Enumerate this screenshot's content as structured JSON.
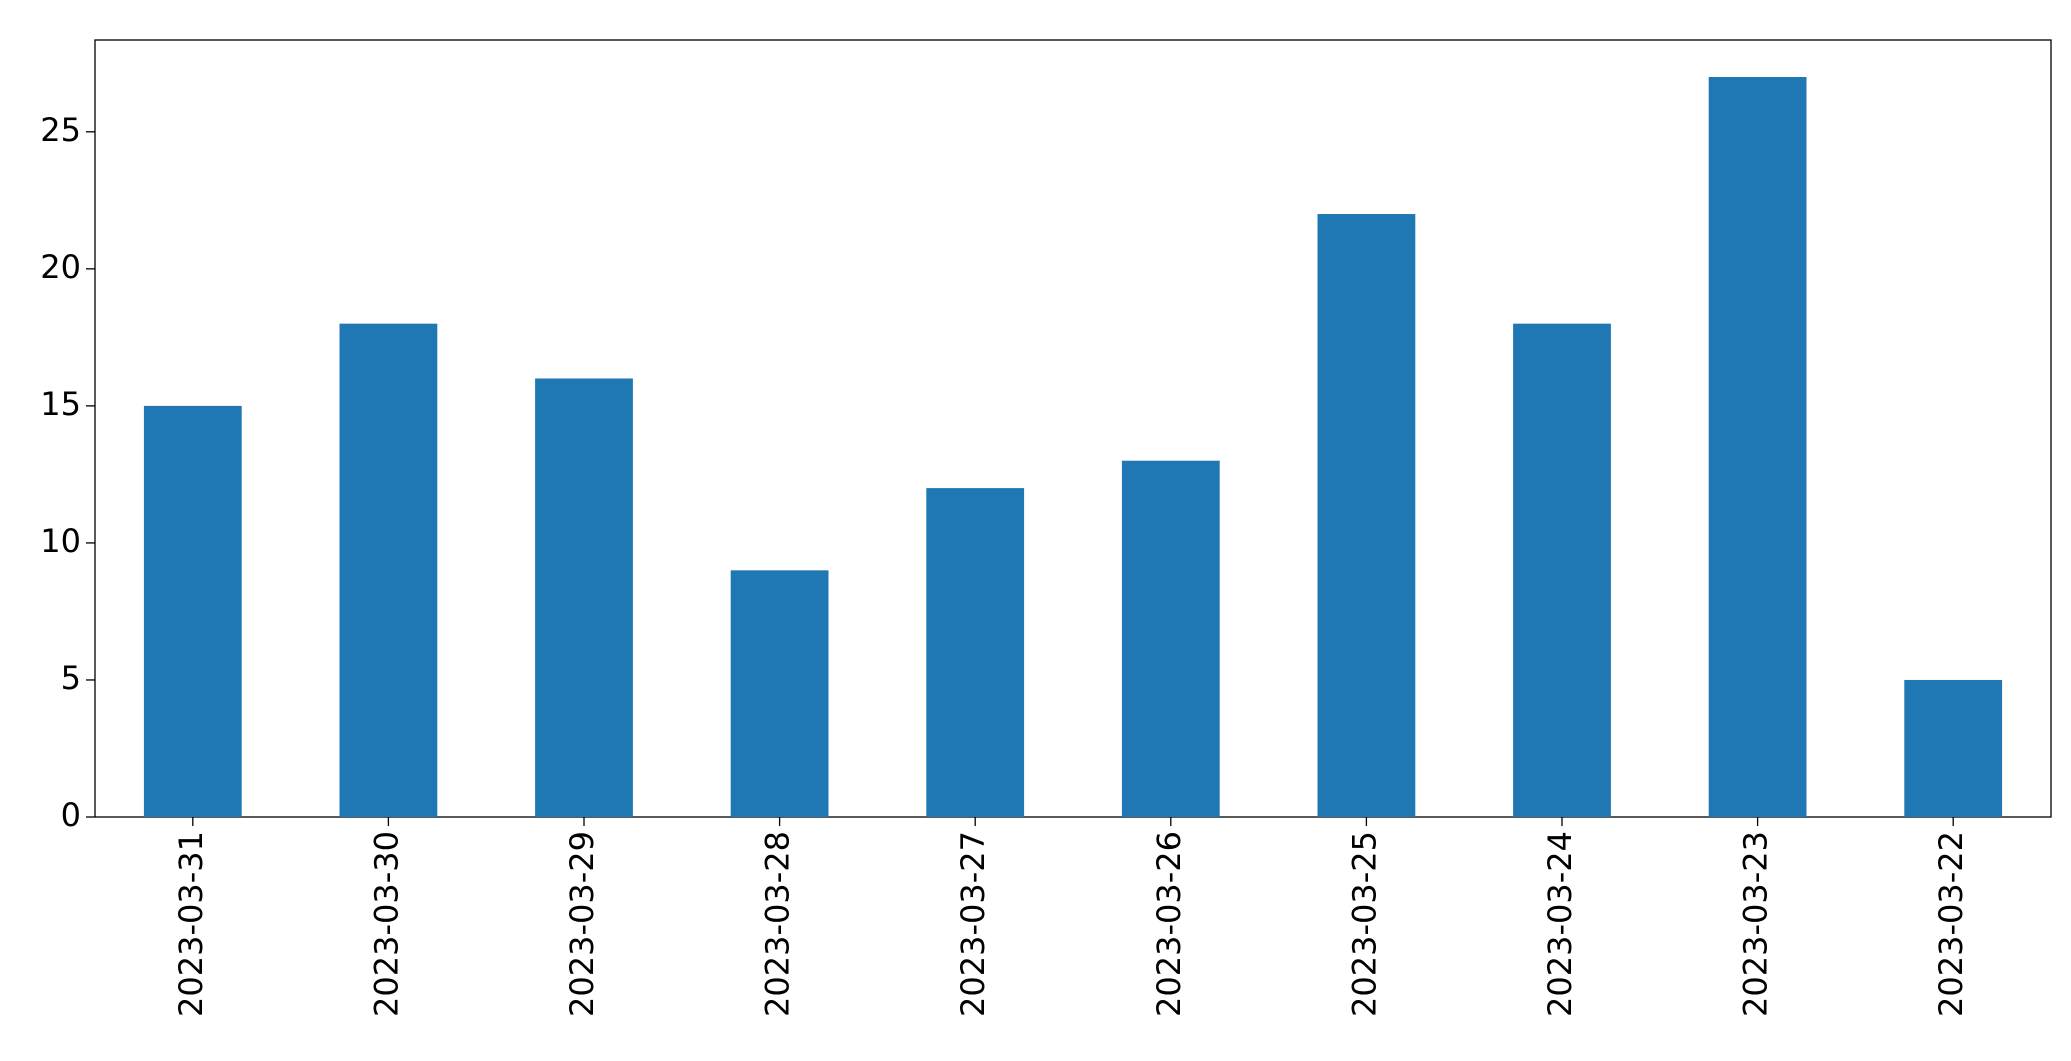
{
  "chart_data": {
    "type": "bar",
    "categories": [
      "2023-03-31",
      "2023-03-30",
      "2023-03-29",
      "2023-03-28",
      "2023-03-27",
      "2023-03-26",
      "2023-03-25",
      "2023-03-24",
      "2023-03-23",
      "2023-03-22"
    ],
    "values": [
      15,
      18,
      16,
      9,
      12,
      13,
      22,
      18,
      27,
      5
    ],
    "color": "#1f77b4",
    "ylim": [
      0,
      28.35
    ],
    "yticks": [
      0,
      5,
      10,
      15,
      20,
      25
    ],
    "grid": false
  }
}
